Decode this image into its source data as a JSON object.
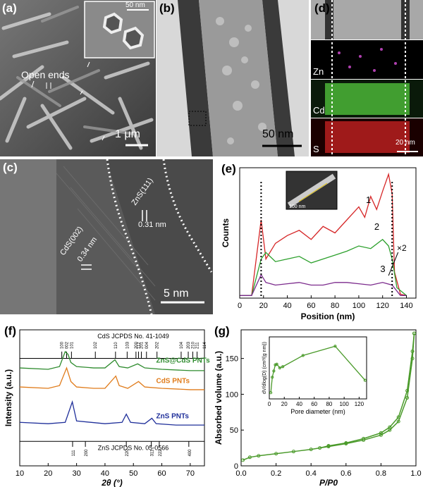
{
  "panels": {
    "a": {
      "label": "(a)",
      "inset_scale": "50 nm",
      "annotation": "Open ends",
      "scale": "1 μm"
    },
    "b": {
      "label": "(b)",
      "scale": "50 nm"
    },
    "c": {
      "label": "(c)",
      "cds": "CdS(002)",
      "cds_d": "0.34 nm",
      "zns": "ZnS(111)",
      "zns_d": "0.31 nm",
      "scale": "5 nm"
    },
    "d": {
      "label": "(d)",
      "zn": "Zn",
      "cd": "Cd",
      "s": "S",
      "scale": "20 nm"
    },
    "e": {
      "label": "(e)",
      "inset_scale": "100 nm",
      "xlabel": "Position (nm)",
      "ylabel": "Counts",
      "xticks": [
        "0",
        "20",
        "40",
        "60",
        "80",
        "100",
        "120",
        "140"
      ],
      "curve1": "1",
      "curve2": "2",
      "curve3": "3",
      "mult": "×2"
    },
    "f": {
      "label": "(f)",
      "xlabel": "2θ (°)",
      "ylabel": "Intensity (a.u.)",
      "xticks": [
        "10",
        "20",
        "30",
        "40",
        "50",
        "60",
        "70"
      ],
      "cds_ref": "CdS JCPDS No. 41-1049",
      "zns_ref": "ZnS JCPDS No. 05-0566",
      "s1": "ZnS@CdS PNTs",
      "s2": "CdS PNTs",
      "s3": "ZnS PNTs",
      "cds_peaks": [
        "100",
        "002",
        "101",
        "102",
        "110",
        "103",
        "200",
        "112",
        "201",
        "004",
        "202",
        "104",
        "203",
        "210",
        "211",
        "114"
      ],
      "zns_peaks": [
        "111",
        "200",
        "220",
        "311",
        "222",
        "400"
      ]
    },
    "g": {
      "label": "(g)",
      "xlabel": "P/P0",
      "ylabel": "Absorbed volume (a.u.)",
      "xticks": [
        "0.0",
        "0.2",
        "0.4",
        "0.6",
        "0.8",
        "1.0"
      ],
      "yticks": [
        "0",
        "50",
        "100",
        "150"
      ],
      "inset_xlabel": "Pore diameter (nm)",
      "inset_ylabel": "dV/dlog(D) (cm³/(g nm))",
      "inset_xticks": [
        "0",
        "20",
        "40",
        "60",
        "80",
        "100",
        "120"
      ]
    }
  },
  "chart_data": [
    {
      "type": "line",
      "panel": "e",
      "title": "",
      "xlabel": "Position (nm)",
      "ylabel": "Counts",
      "xlim": [
        0,
        148
      ],
      "series": [
        {
          "name": "1",
          "color": "#d62728",
          "x": [
            0,
            10,
            18,
            22,
            30,
            40,
            50,
            60,
            70,
            80,
            90,
            100,
            105,
            110,
            115,
            120,
            125,
            128,
            130,
            135,
            140
          ],
          "y": [
            0.02,
            0.02,
            0.6,
            0.3,
            0.42,
            0.48,
            0.52,
            0.45,
            0.55,
            0.5,
            0.6,
            0.7,
            0.62,
            0.78,
            0.68,
            0.82,
            0.95,
            0.8,
            0.2,
            0.03,
            0.02
          ]
        },
        {
          "name": "2",
          "color": "#2ca02c",
          "x": [
            0,
            10,
            18,
            22,
            30,
            40,
            50,
            60,
            70,
            80,
            90,
            100,
            110,
            120,
            125,
            128,
            132,
            140
          ],
          "y": [
            0.02,
            0.02,
            0.3,
            0.35,
            0.28,
            0.3,
            0.32,
            0.27,
            0.3,
            0.33,
            0.36,
            0.4,
            0.38,
            0.45,
            0.4,
            0.3,
            0.08,
            0.02
          ]
        },
        {
          "name": "3",
          "color": "#7b2a8c",
          "x": [
            0,
            10,
            18,
            22,
            30,
            40,
            50,
            60,
            70,
            80,
            90,
            100,
            110,
            120,
            128,
            135,
            140
          ],
          "y": [
            0.02,
            0.02,
            0.18,
            0.12,
            0.1,
            0.11,
            0.12,
            0.1,
            0.1,
            0.12,
            0.12,
            0.11,
            0.1,
            0.12,
            0.1,
            0.02,
            0.02
          ]
        }
      ]
    },
    {
      "type": "line",
      "panel": "f",
      "title": "",
      "xlabel": "2θ (°)",
      "ylabel": "Intensity (a.u.)",
      "xlim": [
        10,
        75
      ],
      "series": [
        {
          "name": "ZnS@CdS PNTs",
          "color": "#2e8b2e",
          "x": [
            10,
            20,
            24,
            26,
            27,
            28,
            30,
            36,
            40,
            43.5,
            45,
            48,
            51.5,
            54,
            60,
            70,
            75
          ],
          "y": [
            0.72,
            0.71,
            0.73,
            0.84,
            0.82,
            0.76,
            0.73,
            0.72,
            0.72,
            0.78,
            0.73,
            0.72,
            0.75,
            0.72,
            0.71,
            0.7,
            0.7
          ]
        },
        {
          "name": "CdS PNTs",
          "color": "#e07b1a",
          "x": [
            10,
            20,
            24,
            26.5,
            28,
            30,
            36,
            40,
            43.8,
            45,
            48,
            51.8,
            54,
            60,
            70,
            75
          ],
          "y": [
            0.58,
            0.57,
            0.59,
            0.72,
            0.62,
            0.58,
            0.57,
            0.57,
            0.66,
            0.59,
            0.57,
            0.62,
            0.58,
            0.57,
            0.56,
            0.56
          ]
        },
        {
          "name": "ZnS PNTs",
          "color": "#1f2f9a",
          "x": [
            10,
            20,
            26,
            28.5,
            30,
            40,
            46,
            47.5,
            49,
            54,
            56.5,
            58,
            65,
            75
          ],
          "y": [
            0.32,
            0.31,
            0.32,
            0.47,
            0.33,
            0.31,
            0.32,
            0.38,
            0.32,
            0.31,
            0.35,
            0.31,
            0.3,
            0.3
          ]
        }
      ]
    },
    {
      "type": "line",
      "panel": "g",
      "title": "",
      "xlabel": "P/P0",
      "ylabel": "Absorbed volume (a.u.)",
      "xlim": [
        0,
        1
      ],
      "ylim": [
        0,
        190
      ],
      "series": [
        {
          "name": "adsorption",
          "color": "#4a9a2a",
          "x": [
            0.01,
            0.05,
            0.1,
            0.2,
            0.3,
            0.4,
            0.5,
            0.6,
            0.7,
            0.8,
            0.85,
            0.9,
            0.95,
            0.98,
            0.99
          ],
          "y": [
            8,
            12,
            14,
            17,
            20,
            23,
            27,
            31,
            36,
            43,
            50,
            62,
            95,
            150,
            185
          ]
        },
        {
          "name": "desorption",
          "color": "#4a9a2a",
          "x": [
            0.99,
            0.98,
            0.95,
            0.9,
            0.85,
            0.8,
            0.7,
            0.6,
            0.5,
            0.45
          ],
          "y": [
            185,
            160,
            105,
            68,
            54,
            46,
            38,
            32,
            28,
            25
          ]
        }
      ]
    },
    {
      "type": "line",
      "panel": "g-inset",
      "title": "",
      "xlabel": "Pore diameter (nm)",
      "ylabel": "dV/dlog(D) (cm³/(g nm))",
      "xlim": [
        0,
        130
      ],
      "series": [
        {
          "name": "pore",
          "color": "#4a9a2a",
          "x": [
            2,
            4,
            6,
            8,
            10,
            14,
            18,
            45,
            88,
            128
          ],
          "y": [
            0.1,
            0.35,
            0.45,
            0.55,
            0.56,
            0.5,
            0.52,
            0.7,
            0.85,
            0.3
          ]
        }
      ]
    }
  ]
}
